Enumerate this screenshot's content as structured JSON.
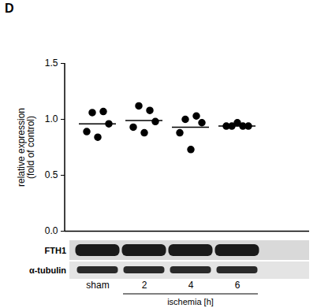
{
  "chart_data": {
    "type": "scatter",
    "title": "D",
    "categories": [
      "sham",
      "2",
      "4",
      "6"
    ],
    "group_label": "ischemia [h]",
    "group_categories": [
      "2",
      "4",
      "6"
    ],
    "values": [
      [
        0.89,
        1.06,
        0.84,
        1.07,
        0.96
      ],
      [
        0.93,
        1.12,
        0.88,
        1.08,
        0.98
      ],
      [
        0.88,
        1.0,
        0.73,
        1.03,
        0.97
      ],
      [
        0.94,
        0.94,
        0.97,
        0.94,
        0.94
      ]
    ],
    "means": [
      0.96,
      0.99,
      0.93,
      0.94
    ],
    "y_label": "relative expression\n(fold of control)",
    "ylim": [
      0,
      1.5
    ],
    "yticks": [
      {
        "value": 0,
        "label": "0.0"
      },
      {
        "value": 0.5,
        "label": "0.5"
      },
      {
        "value": 1,
        "label": "1.0"
      },
      {
        "value": 1.5,
        "label": "1.5"
      }
    ],
    "color": "#000000",
    "marker": "circle",
    "blot_labels": [
      "FTH1",
      "α-tubulin"
    ]
  }
}
